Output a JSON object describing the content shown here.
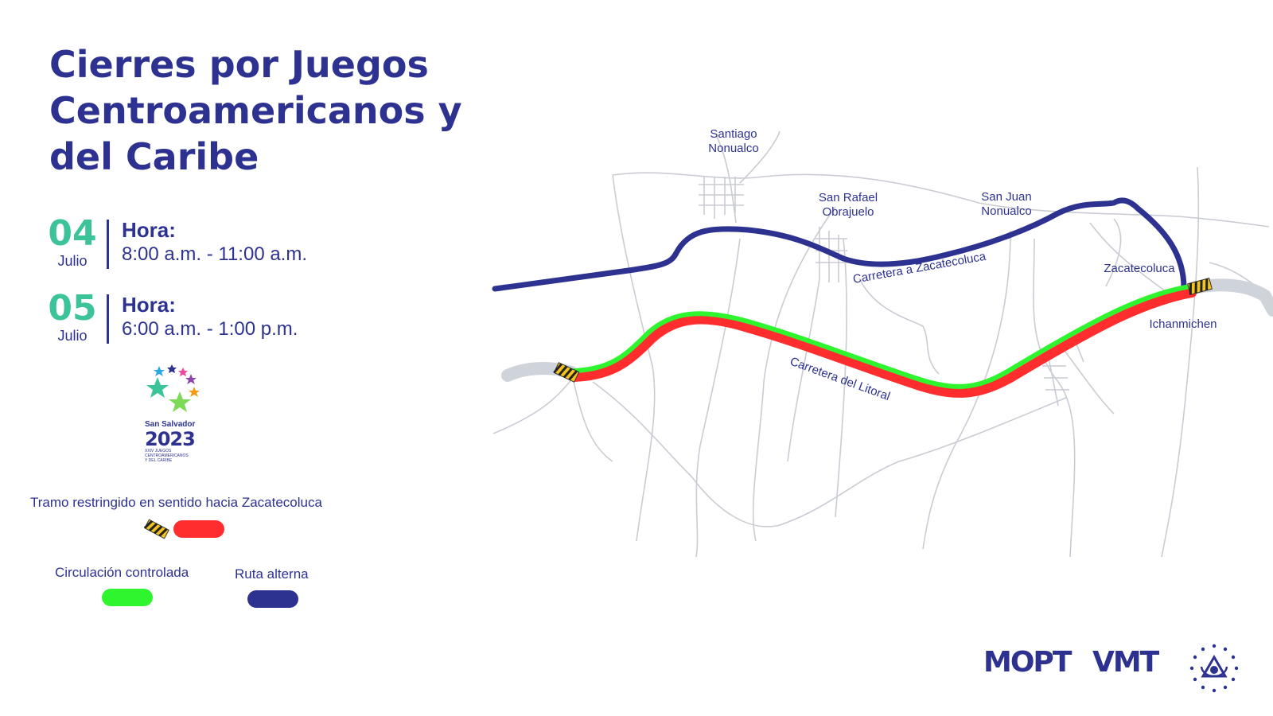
{
  "title": "Cierres por Juegos Centroamericanos y del Caribe",
  "schedule": [
    {
      "day": "04",
      "month": "Julio",
      "hora_label": "Hora:",
      "time": "8:00 a.m. - 11:00 a.m."
    },
    {
      "day": "05",
      "month": "Julio",
      "hora_label": "Hora:",
      "time": "6:00 a.m. - 1:00 p.m."
    }
  ],
  "event_logo": {
    "city": "San Salvador",
    "year": "2023",
    "subtitle_lines": [
      "XXIV JUEGOS",
      "CENTROAMERICANOS",
      "Y DEL CARIBE"
    ]
  },
  "legend": {
    "restricted": {
      "label": "Tramo restringido en sentido hacia Zacatecoluca",
      "color": "#ff2d2d"
    },
    "controlled": {
      "label": "Circulación controlada",
      "color": "#2ef52e"
    },
    "alternate": {
      "label": "Ruta alterna",
      "color": "#2d3290"
    }
  },
  "map": {
    "places": {
      "santiago": [
        "Santiago",
        "Nonualco"
      ],
      "san_rafael": [
        "San Rafael",
        "Obrajuelo"
      ],
      "san_juan": [
        "San Juan",
        "Nonualco"
      ],
      "zacatecoluca": "Zacatecoluca",
      "ichanmichen": "Ichanmichen"
    },
    "roads": {
      "carretera_zacatecoluca": "Carretera a Zacatecoluca",
      "carretera_litoral": "Carretera del Litoral"
    }
  },
  "footer": {
    "mopt": "MOPT",
    "vmt": "VMT"
  }
}
